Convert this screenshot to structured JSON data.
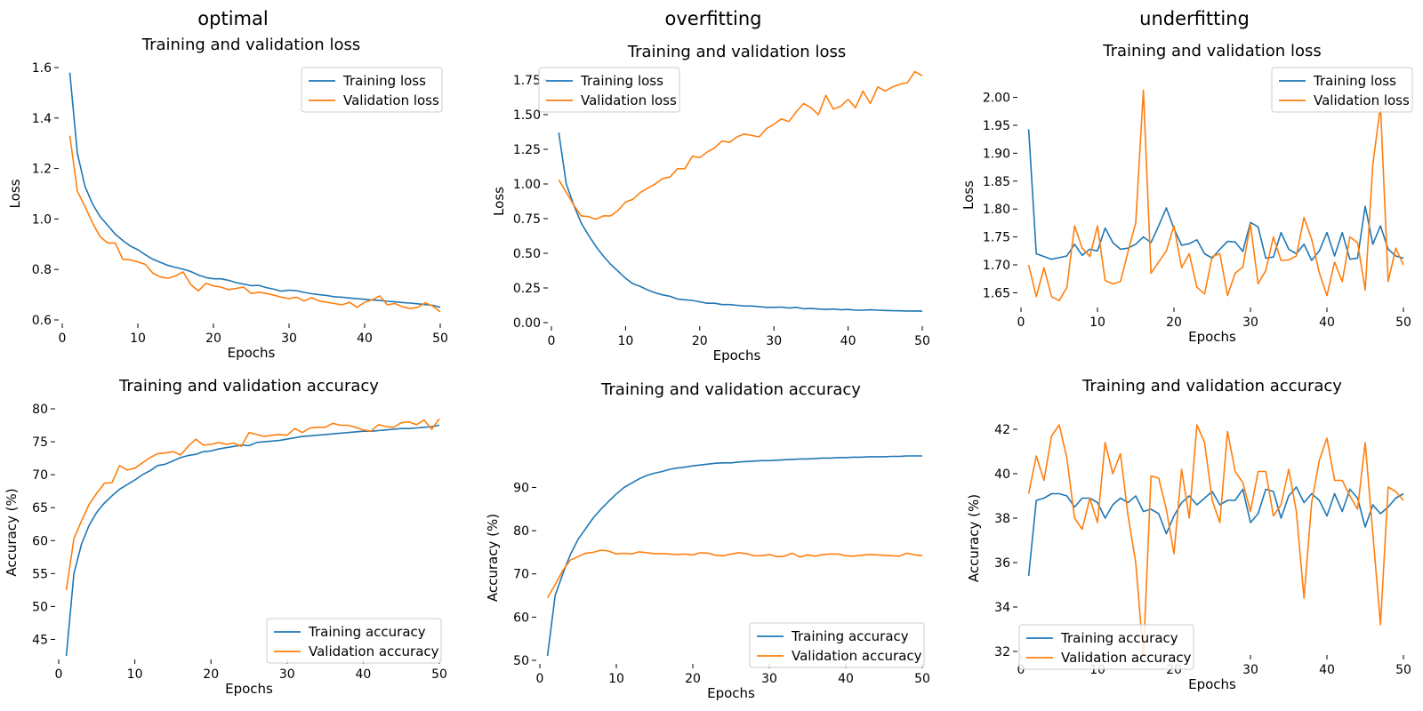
{
  "figure": {
    "column_titles": [
      "optimal",
      "overfitting",
      "underfitting"
    ]
  },
  "colors": {
    "training": "#1f77b4",
    "validation": "#ff7f0e"
  },
  "chart_data": [
    {
      "type": "line",
      "title": "Training and validation loss",
      "xlabel": "Epochs",
      "ylabel": "Loss",
      "xlim": [
        0,
        50
      ],
      "ylim": [
        0.6,
        1.6
      ],
      "xticks": [
        0,
        10,
        20,
        30,
        40,
        50
      ],
      "yticks": [
        0.6,
        0.8,
        1.0,
        1.2,
        1.4,
        1.6
      ],
      "ytick_labels": [
        "0.6",
        "0.8",
        "1.0",
        "1.2",
        "1.4",
        "1.6"
      ],
      "legend_position": "top-right",
      "x": [
        1,
        2,
        3,
        4,
        5,
        6,
        7,
        8,
        9,
        10,
        11,
        12,
        13,
        14,
        15,
        16,
        17,
        18,
        19,
        20,
        21,
        22,
        23,
        24,
        25,
        26,
        27,
        28,
        29,
        30,
        31,
        32,
        33,
        34,
        35,
        36,
        37,
        38,
        39,
        40,
        41,
        42,
        43,
        44,
        45,
        46,
        47,
        48,
        49,
        50
      ],
      "series": [
        {
          "name": "Training loss",
          "values": [
            1.58,
            1.26,
            1.13,
            1.06,
            1.01,
            0.975,
            0.94,
            0.915,
            0.893,
            0.878,
            0.858,
            0.84,
            0.828,
            0.816,
            0.808,
            0.801,
            0.792,
            0.778,
            0.768,
            0.763,
            0.763,
            0.757,
            0.748,
            0.742,
            0.736,
            0.737,
            0.728,
            0.722,
            0.714,
            0.718,
            0.716,
            0.709,
            0.704,
            0.7,
            0.697,
            0.692,
            0.69,
            0.687,
            0.684,
            0.682,
            0.679,
            0.677,
            0.674,
            0.672,
            0.669,
            0.667,
            0.664,
            0.661,
            0.658,
            0.65
          ]
        },
        {
          "name": "Validation loss",
          "values": [
            1.33,
            1.11,
            1.05,
            0.985,
            0.93,
            0.905,
            0.905,
            0.84,
            0.838,
            0.83,
            0.82,
            0.785,
            0.77,
            0.765,
            0.775,
            0.79,
            0.74,
            0.715,
            0.745,
            0.735,
            0.73,
            0.72,
            0.725,
            0.73,
            0.705,
            0.71,
            0.705,
            0.698,
            0.69,
            0.685,
            0.69,
            0.675,
            0.688,
            0.675,
            0.67,
            0.665,
            0.66,
            0.67,
            0.65,
            0.67,
            0.68,
            0.695,
            0.66,
            0.665,
            0.652,
            0.645,
            0.65,
            0.668,
            0.655,
            0.632
          ]
        }
      ]
    },
    {
      "type": "line",
      "title": "Training and validation loss",
      "xlabel": "Epochs",
      "ylabel": "Loss",
      "xlim": [
        0,
        50
      ],
      "ylim": [
        0,
        1.75
      ],
      "xticks": [
        0,
        10,
        20,
        30,
        40,
        50
      ],
      "yticks": [
        0,
        0.25,
        0.5,
        0.75,
        1.0,
        1.25,
        1.5,
        1.75
      ],
      "ytick_labels": [
        "0.00",
        "0.25",
        "0.50",
        "0.75",
        "1.00",
        "1.25",
        "1.50",
        "1.75"
      ],
      "legend_position": "top-left",
      "x": [
        1,
        2,
        3,
        4,
        5,
        6,
        7,
        8,
        9,
        10,
        11,
        12,
        13,
        14,
        15,
        16,
        17,
        18,
        19,
        20,
        21,
        22,
        23,
        24,
        25,
        26,
        27,
        28,
        29,
        30,
        31,
        32,
        33,
        34,
        35,
        36,
        37,
        38,
        39,
        40,
        41,
        42,
        43,
        44,
        45,
        46,
        47,
        48,
        49,
        50
      ],
      "series": [
        {
          "name": "Training loss",
          "values": [
            1.37,
            1.0,
            0.85,
            0.72,
            0.63,
            0.55,
            0.48,
            0.42,
            0.37,
            0.32,
            0.28,
            0.26,
            0.235,
            0.215,
            0.2,
            0.19,
            0.17,
            0.165,
            0.16,
            0.15,
            0.14,
            0.14,
            0.13,
            0.13,
            0.125,
            0.12,
            0.12,
            0.115,
            0.11,
            0.11,
            0.112,
            0.105,
            0.11,
            0.1,
            0.102,
            0.098,
            0.095,
            0.098,
            0.092,
            0.095,
            0.09,
            0.09,
            0.092,
            0.09,
            0.088,
            0.086,
            0.085,
            0.084,
            0.084,
            0.083
          ]
        },
        {
          "name": "Validation loss",
          "values": [
            1.03,
            0.94,
            0.85,
            0.77,
            0.765,
            0.745,
            0.77,
            0.77,
            0.81,
            0.87,
            0.89,
            0.94,
            0.97,
            1.0,
            1.04,
            1.05,
            1.11,
            1.11,
            1.2,
            1.19,
            1.23,
            1.26,
            1.31,
            1.3,
            1.34,
            1.36,
            1.35,
            1.34,
            1.4,
            1.43,
            1.47,
            1.45,
            1.52,
            1.58,
            1.55,
            1.5,
            1.64,
            1.54,
            1.56,
            1.61,
            1.55,
            1.67,
            1.58,
            1.7,
            1.67,
            1.7,
            1.72,
            1.73,
            1.81,
            1.78
          ]
        }
      ]
    },
    {
      "type": "line",
      "title": "Training and validation loss",
      "xlabel": "Epochs",
      "ylabel": "Loss",
      "xlim": [
        0,
        50
      ],
      "ylim": [
        1.63,
        2.02
      ],
      "xticks": [
        0,
        10,
        20,
        30,
        40,
        50
      ],
      "yticks": [
        1.65,
        1.7,
        1.75,
        1.8,
        1.85,
        1.9,
        1.95,
        2.0
      ],
      "ytick_labels": [
        "1.65",
        "1.70",
        "1.75",
        "1.80",
        "1.85",
        "1.90",
        "1.95",
        "2.00"
      ],
      "legend_position": "top-right",
      "x": [
        1,
        2,
        3,
        4,
        5,
        6,
        7,
        8,
        9,
        10,
        11,
        12,
        13,
        14,
        15,
        16,
        17,
        18,
        19,
        20,
        21,
        22,
        23,
        24,
        25,
        26,
        27,
        28,
        29,
        30,
        31,
        32,
        33,
        34,
        35,
        36,
        37,
        38,
        39,
        40,
        41,
        42,
        43,
        44,
        45,
        46,
        47,
        48,
        49,
        50
      ],
      "series": [
        {
          "name": "Training loss",
          "values": [
            1.943,
            1.72,
            1.715,
            1.71,
            1.713,
            1.716,
            1.737,
            1.717,
            1.728,
            1.725,
            1.766,
            1.74,
            1.728,
            1.73,
            1.737,
            1.75,
            1.74,
            1.77,
            1.802,
            1.765,
            1.735,
            1.738,
            1.745,
            1.72,
            1.712,
            1.728,
            1.742,
            1.741,
            1.724,
            1.776,
            1.768,
            1.712,
            1.714,
            1.758,
            1.728,
            1.72,
            1.737,
            1.708,
            1.725,
            1.758,
            1.716,
            1.758,
            1.71,
            1.712,
            1.805,
            1.737,
            1.77,
            1.728,
            1.716,
            1.712
          ]
        },
        {
          "name": "Validation loss",
          "values": [
            1.7,
            1.643,
            1.695,
            1.643,
            1.636,
            1.66,
            1.77,
            1.73,
            1.715,
            1.77,
            1.672,
            1.666,
            1.67,
            1.724,
            1.775,
            2.013,
            1.685,
            1.705,
            1.725,
            1.77,
            1.695,
            1.72,
            1.66,
            1.648,
            1.715,
            1.72,
            1.645,
            1.685,
            1.696,
            1.773,
            1.666,
            1.69,
            1.75,
            1.708,
            1.709,
            1.716,
            1.785,
            1.746,
            1.686,
            1.645,
            1.705,
            1.67,
            1.75,
            1.74,
            1.655,
            1.88,
            1.985,
            1.67,
            1.73,
            1.7
          ]
        }
      ]
    },
    {
      "type": "line",
      "title": "Training and validation accuracy",
      "xlabel": "Epochs",
      "ylabel": "Accuracy (%)",
      "xlim": [
        0,
        50
      ],
      "ylim": [
        42.5,
        80
      ],
      "xticks": [
        0,
        10,
        20,
        30,
        40,
        50
      ],
      "yticks": [
        45,
        50,
        55,
        60,
        65,
        70,
        75,
        80
      ],
      "ytick_labels": [
        "45",
        "50",
        "55",
        "60",
        "65",
        "70",
        "75",
        "80"
      ],
      "legend_position": "bottom-right",
      "x": [
        1,
        2,
        3,
        4,
        5,
        6,
        7,
        8,
        9,
        10,
        11,
        12,
        13,
        14,
        15,
        16,
        17,
        18,
        19,
        20,
        21,
        22,
        23,
        24,
        25,
        26,
        27,
        28,
        29,
        30,
        31,
        32,
        33,
        34,
        35,
        36,
        37,
        38,
        39,
        40,
        41,
        42,
        43,
        44,
        45,
        46,
        47,
        48,
        49,
        50
      ],
      "series": [
        {
          "name": "Training accuracy",
          "values": [
            42.5,
            55,
            59.5,
            62.3,
            64.3,
            65.7,
            66.8,
            67.8,
            68.5,
            69.2,
            70,
            70.6,
            71.4,
            71.6,
            72.1,
            72.6,
            72.9,
            73.1,
            73.5,
            73.6,
            73.9,
            74.1,
            74.3,
            74.5,
            74.4,
            74.9,
            75,
            75.1,
            75.2,
            75.4,
            75.6,
            75.8,
            75.9,
            76,
            76.1,
            76.2,
            76.3,
            76.4,
            76.5,
            76.6,
            76.6,
            76.7,
            76.8,
            76.9,
            77,
            77,
            77.1,
            77.2,
            77.3,
            77.5
          ]
        },
        {
          "name": "Validation accuracy",
          "values": [
            52.5,
            60.3,
            63,
            65.5,
            67.2,
            68.7,
            68.8,
            71.4,
            70.7,
            71,
            71.8,
            72.6,
            73.2,
            73.3,
            73.5,
            73,
            74.3,
            75.4,
            74.5,
            74.6,
            74.9,
            74.6,
            74.8,
            74.3,
            76.4,
            76.1,
            75.8,
            76,
            76.1,
            76,
            77,
            76.4,
            77.1,
            77.2,
            77.2,
            77.8,
            77.5,
            77.5,
            77.2,
            76.8,
            76.6,
            77.6,
            77.3,
            77.2,
            77.9,
            78,
            77.6,
            78.3,
            76.9,
            78.5
          ]
        }
      ]
    },
    {
      "type": "line",
      "title": "Training and validation accuracy",
      "xlabel": "Epochs",
      "ylabel": "Accuracy (%)",
      "xlim": [
        0,
        50
      ],
      "ylim": [
        50,
        97.5
      ],
      "xticks": [
        0,
        10,
        20,
        30,
        40,
        50
      ],
      "yticks": [
        50,
        60,
        70,
        80,
        90
      ],
      "ytick_labels": [
        "50",
        "60",
        "70",
        "80",
        "90"
      ],
      "legend_position": "bottom-right",
      "x": [
        1,
        2,
        3,
        4,
        5,
        6,
        7,
        8,
        9,
        10,
        11,
        12,
        13,
        14,
        15,
        16,
        17,
        18,
        19,
        20,
        21,
        22,
        23,
        24,
        25,
        26,
        27,
        28,
        29,
        30,
        31,
        32,
        33,
        34,
        35,
        36,
        37,
        38,
        39,
        40,
        41,
        42,
        43,
        44,
        45,
        46,
        47,
        48,
        49,
        50
      ],
      "series": [
        {
          "name": "Training accuracy",
          "values": [
            51,
            65,
            70,
            74.5,
            78,
            80.5,
            83,
            85,
            86.8,
            88.5,
            90,
            91,
            92,
            92.8,
            93.3,
            93.7,
            94.2,
            94.5,
            94.7,
            95,
            95.2,
            95.4,
            95.6,
            95.7,
            95.7,
            95.9,
            96,
            96.1,
            96.2,
            96.2,
            96.3,
            96.4,
            96.5,
            96.6,
            96.6,
            96.7,
            96.8,
            96.8,
            96.9,
            96.9,
            97,
            97,
            97.1,
            97.1,
            97.1,
            97.2,
            97.2,
            97.3,
            97.3,
            97.3
          ]
        },
        {
          "name": "Validation accuracy",
          "values": [
            64.5,
            67.5,
            70.8,
            73.2,
            74,
            74.8,
            75,
            75.5,
            75.3,
            74.6,
            74.8,
            74.6,
            75.1,
            74.9,
            74.7,
            74.7,
            74.6,
            74.5,
            74.6,
            74.4,
            74.9,
            74.8,
            74.3,
            74.2,
            74.6,
            74.9,
            74.7,
            74.2,
            74.2,
            74.5,
            74,
            74.1,
            74.8,
            73.9,
            74.4,
            74.1,
            74.5,
            74.6,
            74.6,
            74.2,
            74.1,
            74.3,
            74.5,
            74.4,
            74.3,
            74.2,
            74.1,
            74.8,
            74.4,
            74.2
          ]
        }
      ]
    },
    {
      "type": "line",
      "title": "Training and validation accuracy",
      "xlabel": "Epochs",
      "ylabel": "Accuracy (%)",
      "xlim": [
        0,
        50
      ],
      "ylim": [
        32,
        42.2
      ],
      "xticks": [
        0,
        10,
        20,
        30,
        40,
        50
      ],
      "yticks": [
        32,
        34,
        36,
        38,
        40,
        42
      ],
      "ytick_labels": [
        "32",
        "34",
        "36",
        "38",
        "40",
        "42"
      ],
      "legend_position": "bottom-left",
      "x": [
        1,
        2,
        3,
        4,
        5,
        6,
        7,
        8,
        9,
        10,
        11,
        12,
        13,
        14,
        15,
        16,
        17,
        18,
        19,
        20,
        21,
        22,
        23,
        24,
        25,
        26,
        27,
        28,
        29,
        30,
        31,
        32,
        33,
        34,
        35,
        36,
        37,
        38,
        39,
        40,
        41,
        42,
        43,
        44,
        45,
        46,
        47,
        48,
        49,
        50
      ],
      "series": [
        {
          "name": "Training accuracy",
          "values": [
            35.4,
            38.8,
            38.9,
            39.1,
            39.1,
            39,
            38.5,
            38.9,
            38.9,
            38.7,
            38,
            38.6,
            38.9,
            38.7,
            39,
            38.3,
            38.4,
            38.2,
            37.3,
            38.1,
            38.7,
            39,
            38.6,
            38.9,
            39.2,
            38.6,
            38.8,
            38.8,
            39.3,
            37.8,
            38.2,
            39.3,
            39.2,
            38,
            39,
            39.4,
            38.7,
            39.1,
            38.8,
            38.1,
            39.1,
            38.3,
            39.3,
            38.9,
            37.6,
            38.6,
            38.2,
            38.5,
            38.9,
            39.1
          ]
        },
        {
          "name": "Validation accuracy",
          "values": [
            39.1,
            40.8,
            39.7,
            41.7,
            42.2,
            40.7,
            38,
            37.5,
            38.9,
            37.8,
            41.4,
            40,
            40.9,
            38.1,
            36,
            31.8,
            39.9,
            39.8,
            38.4,
            36.4,
            40.2,
            38,
            42.2,
            41.4,
            38.8,
            37.8,
            41.9,
            40.1,
            39.6,
            38.3,
            40.1,
            40.1,
            38.1,
            38.6,
            40.2,
            38.3,
            34.4,
            38.7,
            40.6,
            41.6,
            39.7,
            39.7,
            39,
            38.4,
            41.4,
            37.3,
            33.2,
            39.4,
            39.2,
            38.8
          ]
        }
      ]
    }
  ]
}
